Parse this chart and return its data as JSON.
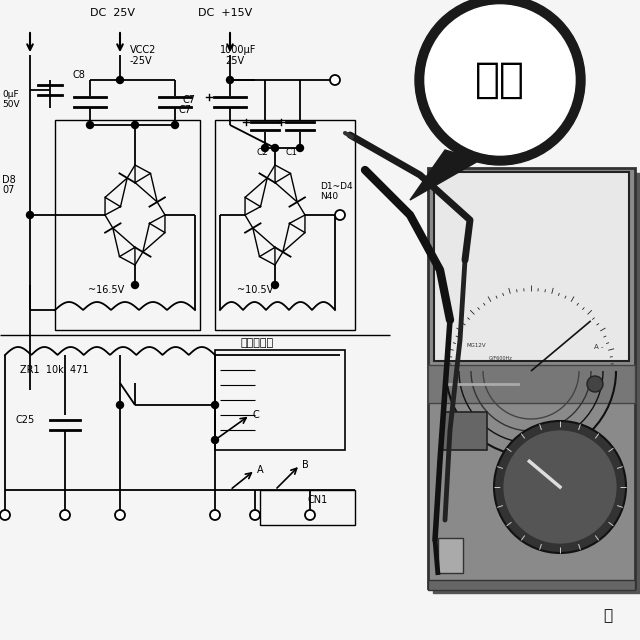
{
  "bg_color": "#f5f5f5",
  "speech_bubble_text": "损坏",
  "labels": {
    "dc_25v": "DC  25V",
    "dc_15v": "DC  +15V",
    "vcc2_line1": "VCC2",
    "vcc2_line2": "-25V",
    "c8": "C8",
    "c7": "C7",
    "c2": "C2",
    "c1": "C1",
    "cap_left_line1": "0µF",
    "cap_left_line2": "50V",
    "cap_1000_line1": "1000µF",
    "cap_1000_line2": "25V",
    "d8_line1": "D8",
    "d8_line2": "07",
    "d1d4_line1": "D1~D4",
    "d1d4_line2": "N40",
    "v16": "~16.5V",
    "v10": "~10.5V",
    "zr1": "ZR1  10k  471",
    "c25": "C25",
    "transformer": "电源变压器",
    "cn1": "CN1",
    "A": "A",
    "B": "B",
    "C": "C",
    "head": "头"
  }
}
